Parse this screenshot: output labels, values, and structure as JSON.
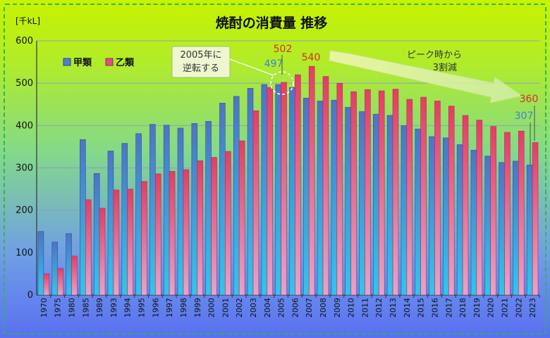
{
  "chart_data": {
    "type": "bar",
    "title": "焼酎の消費量 推移",
    "unit_label": "[千kL]",
    "ylim": [
      0,
      600
    ],
    "yticks": [
      0,
      100,
      200,
      300,
      400,
      500,
      600
    ],
    "grid": true,
    "legend_position": "top-left",
    "categories": [
      "1970",
      "1975",
      "1980",
      "1985",
      "1989",
      "1993",
      "1994",
      "1995",
      "1996",
      "1997",
      "1998",
      "1999",
      "2000",
      "2001",
      "2002",
      "2003",
      "2004",
      "2005",
      "2006",
      "2007",
      "2008",
      "2009",
      "2010",
      "2011",
      "2012",
      "2013",
      "2014",
      "2015",
      "2016",
      "2017",
      "2018",
      "2019",
      "2020",
      "2021",
      "2022",
      "2023"
    ],
    "series": [
      {
        "name": "甲類",
        "color": "#4f7fd0",
        "values": [
          150,
          125,
          145,
          367,
          287,
          340,
          358,
          381,
          403,
          401,
          394,
          405,
          410,
          453,
          469,
          488,
          497,
          497,
          490,
          465,
          458,
          460,
          443,
          433,
          427,
          424,
          400,
          392,
          374,
          371,
          355,
          342,
          328,
          313,
          316,
          307
        ]
      },
      {
        "name": "乙類",
        "color": "#e34e7a",
        "values": [
          50,
          63,
          92,
          225,
          205,
          248,
          250,
          268,
          286,
          292,
          296,
          317,
          325,
          339,
          364,
          435,
          490,
          502,
          520,
          540,
          516,
          500,
          480,
          485,
          482,
          486,
          462,
          467,
          458,
          446,
          424,
          413,
          398,
          384,
          387,
          360
        ]
      }
    ],
    "annotations": {
      "crossover_text": [
        "2005年に",
        "逆転する"
      ],
      "val_2005_kou": "497",
      "val_2005_otsu": "502",
      "peak_val": "540",
      "peak_text": [
        "ピーク時から",
        "3割減"
      ],
      "val_2023_kou": "307",
      "val_2023_otsu": "360"
    }
  }
}
